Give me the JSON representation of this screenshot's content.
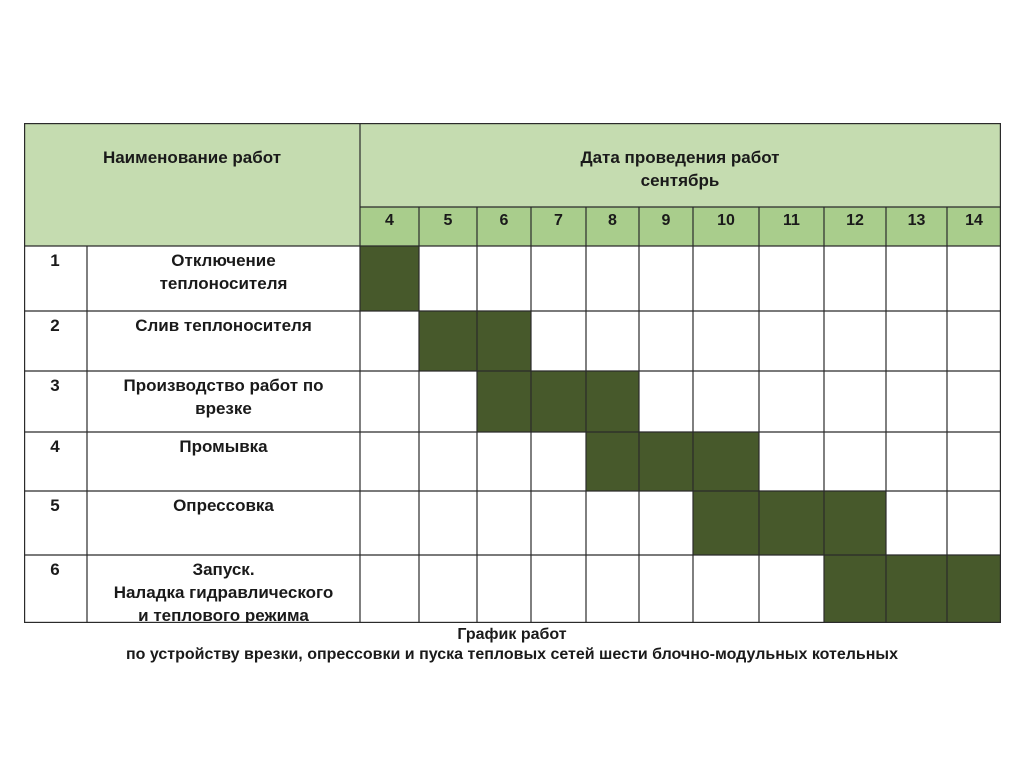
{
  "colors": {
    "header_bg": "#c5dcb0",
    "day_bg": "#a9cd8c",
    "bar": "#47592b",
    "grid": "#2b2b2b"
  },
  "header": {
    "works_title": "Наименование работ",
    "date_title_line1": "Дата проведения работ",
    "date_title_line2": "сентябрь"
  },
  "caption": {
    "line1": "График работ",
    "line2": "по устройству врезки, опрессовки и пуска тепловых сетей шести блочно-модульных котельных"
  },
  "chart_data": {
    "type": "gantt",
    "categories": [
      "4",
      "5",
      "6",
      "7",
      "8",
      "9",
      "10",
      "11",
      "12",
      "13",
      "14"
    ],
    "tasks": [
      {
        "num": "1",
        "name_lines": [
          "Отключение",
          "теплоносителя"
        ],
        "days": [
          "4"
        ]
      },
      {
        "num": "2",
        "name_lines": [
          "Слив теплоносителя"
        ],
        "days": [
          "5",
          "6"
        ]
      },
      {
        "num": "3",
        "name_lines": [
          "Производство работ по",
          "врезке"
        ],
        "days": [
          "6",
          "7",
          "8"
        ]
      },
      {
        "num": "4",
        "name_lines": [
          "Промывка"
        ],
        "days": [
          "8",
          "9",
          "10"
        ]
      },
      {
        "num": "5",
        "name_lines": [
          "Опрессовка"
        ],
        "days": [
          "10",
          "11",
          "12"
        ]
      },
      {
        "num": "6",
        "name_lines": [
          "Запуск.",
          "Наладка гидравлического",
          "и теплового режима"
        ],
        "days": [
          "12",
          "13",
          "14"
        ]
      }
    ]
  }
}
